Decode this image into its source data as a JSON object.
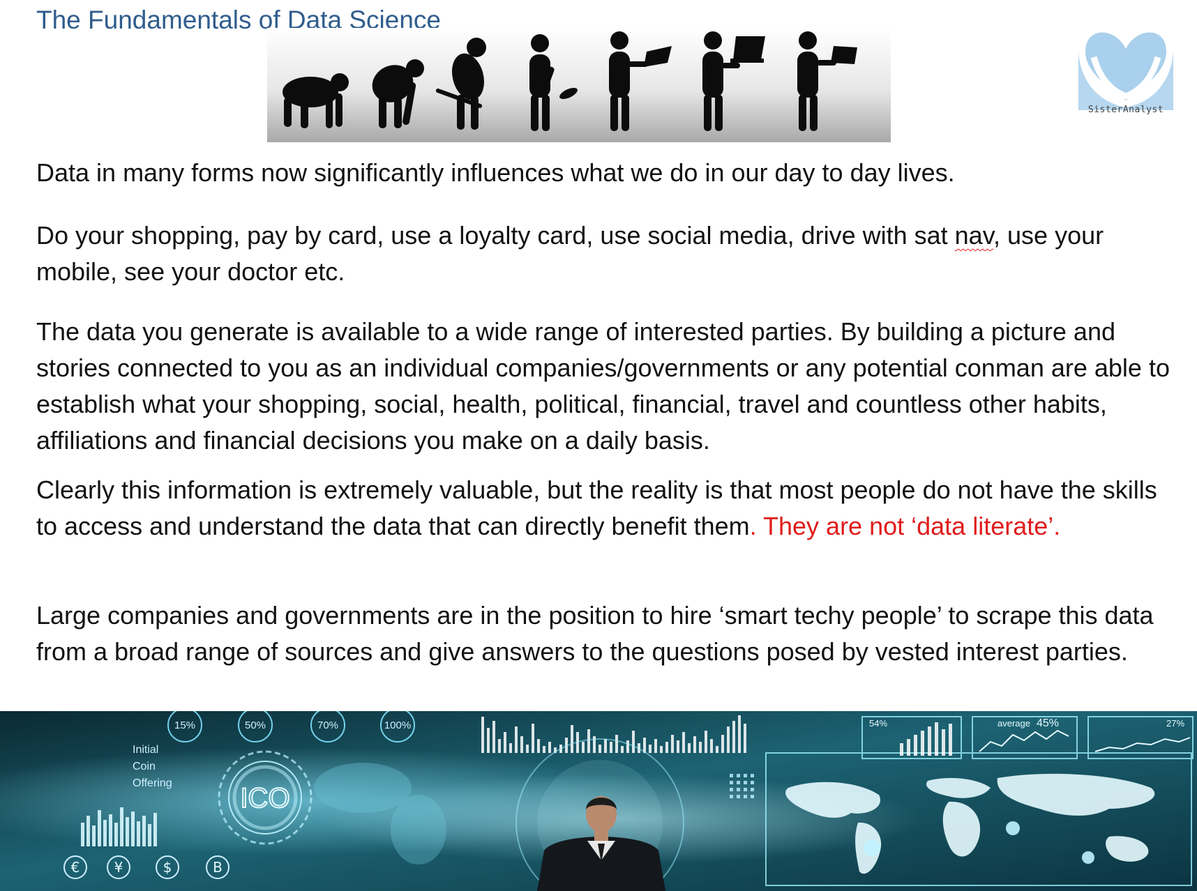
{
  "header": {
    "title": "The Fundamentals of Data Science"
  },
  "logo": {
    "name": "SisterAnalyst",
    "icon": "heart-logo-icon",
    "color": "#a9d0ec"
  },
  "evolution_image": {
    "icon": "human-evolution-silhouette"
  },
  "paragraphs": {
    "p1": "Data in many forms now significantly influences what we do in our day to day lives.",
    "p2_before": "Do your shopping, pay by card, use a loyalty card, use social media, drive with sat ",
    "p2_flagged": "nav",
    "p2_after": ", use your mobile, see your doctor etc.",
    "p3": "The data you generate is available to a wide range of interested parties. By building a picture and stories connected to you as an individual companies/governments or any potential conman are able to establish what your shopping, social, health, political, financial, travel and countless other habits, affiliations and financial decisions you make on a daily basis.",
    "p4_main": "Clearly this information is extremely valuable, but the reality is that most people do not have the skills to access and understand the data that can directly benefit them",
    "p4_highlight": ". They are not ‘data literate’.",
    "p5": "Large companies and governments are in the position to hire ‘smart techy people’ to scrape this data from a broad range of sources and give answers to the questions posed by vested interest parties."
  },
  "banner": {
    "percent_labels": [
      "15%",
      "50%",
      "70%",
      "100%"
    ],
    "side_text": [
      "Initial",
      "Coin",
      "Offering"
    ],
    "center_badge": "ICO",
    "currency_symbols": [
      "€",
      "¥",
      "$",
      "B"
    ],
    "stat_small_1": "54%",
    "stat_small_2": "45%",
    "stat_small_3": "27%",
    "stat_label": "average",
    "accent": "#7fe3ff"
  }
}
